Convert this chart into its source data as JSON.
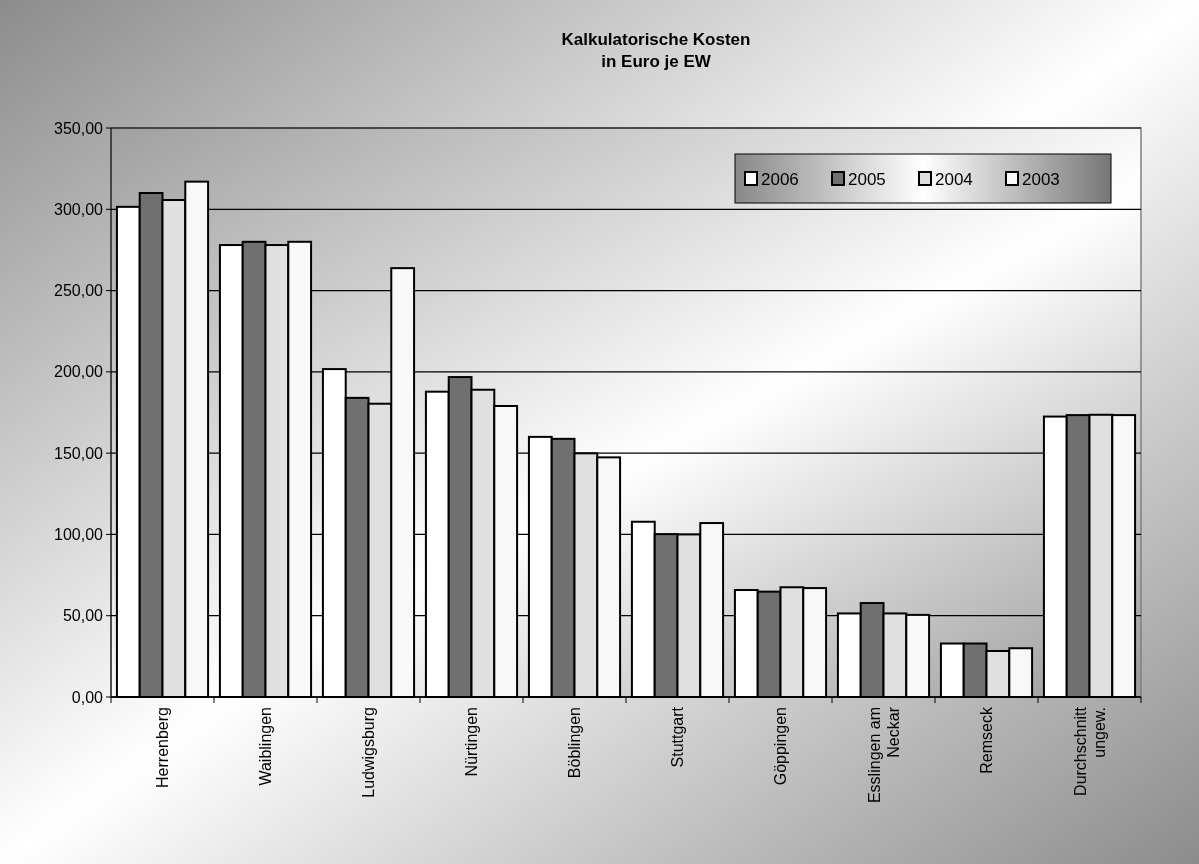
{
  "chart_data": {
    "type": "bar",
    "title": "Kalkulatorische Kosten\nin Euro je EW",
    "categories": [
      "Herrenberg",
      "Waiblingen",
      "Ludwigsburg",
      "Nürtingen",
      "Böblingen",
      "Stuttgart",
      "Göppingen",
      "Esslingen am Neckar",
      "Remseck",
      "Durchschnitt ungew."
    ],
    "series": [
      {
        "name": "2006",
        "color": "#ffffff",
        "values": [
          301.5,
          278,
          201.7,
          187.8,
          160,
          107.8,
          65.8,
          51.4,
          32.9,
          172.5
        ]
      },
      {
        "name": "2005",
        "color": "#707070",
        "values": [
          310,
          280,
          184,
          196.8,
          158.8,
          100.2,
          64.8,
          57.8,
          32.9,
          173.4
        ]
      },
      {
        "name": "2004",
        "color": "#e0e0e0",
        "values": [
          305.7,
          278,
          180.4,
          189,
          149.9,
          100,
          67.5,
          51.4,
          28.3,
          173.6
        ]
      },
      {
        "name": "2003",
        "color": "#f8f8f8",
        "values": [
          317,
          280,
          263.8,
          179,
          147.4,
          107,
          67,
          50.5,
          30,
          173.4
        ]
      }
    ],
    "ylim": [
      0,
      350
    ],
    "yticks": [
      {
        "value": 0,
        "label": "0,00"
      },
      {
        "value": 50,
        "label": "50,00"
      },
      {
        "value": 100,
        "label": "100,00"
      },
      {
        "value": 150,
        "label": "150,00"
      },
      {
        "value": 200,
        "label": "200,00"
      },
      {
        "value": 250,
        "label": "250,00"
      },
      {
        "value": 300,
        "label": "300,00"
      },
      {
        "value": 350,
        "label": "350,00"
      }
    ],
    "grid": "y",
    "legend": "top right"
  }
}
